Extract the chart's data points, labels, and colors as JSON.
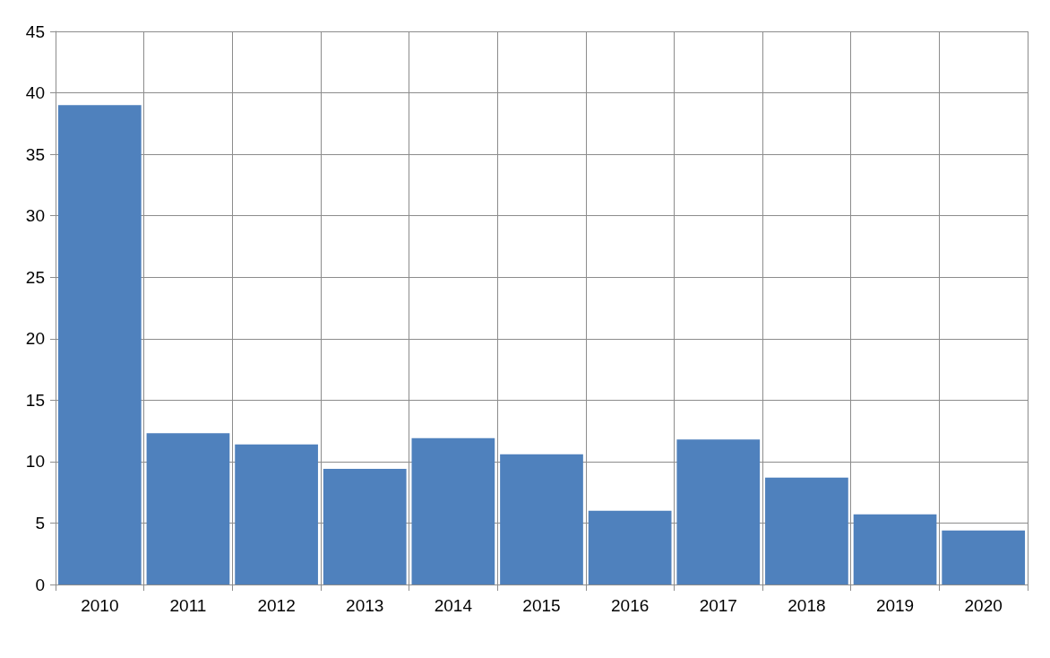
{
  "chart_data": {
    "type": "bar",
    "categories": [
      "2010",
      "2011",
      "2012",
      "2013",
      "2014",
      "2015",
      "2016",
      "2017",
      "2018",
      "2019",
      "2020"
    ],
    "values": [
      39.0,
      12.3,
      11.4,
      9.4,
      11.9,
      10.6,
      6.0,
      11.8,
      8.7,
      5.7,
      4.4
    ],
    "color": "#4f81bd",
    "ylim": [
      0,
      45
    ],
    "yticks": [
      0,
      5,
      10,
      15,
      20,
      25,
      30,
      35,
      40,
      45
    ],
    "grid": true
  }
}
